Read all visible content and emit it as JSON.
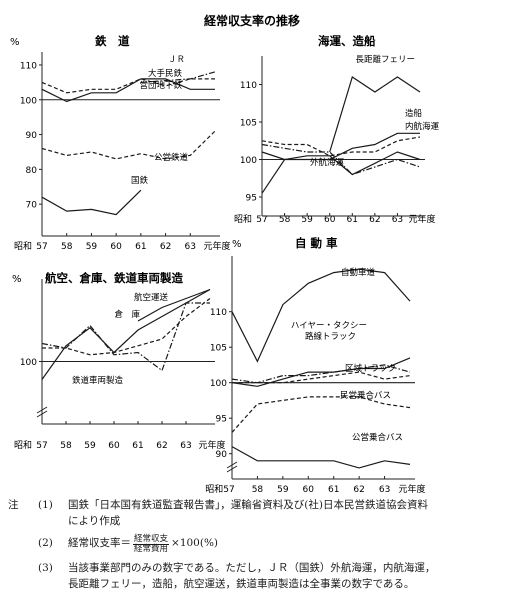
{
  "title": "経常収支率の推移",
  "x_axis": {
    "era_label": "昭和",
    "ticks": [
      "57",
      "58",
      "59",
      "60",
      "61",
      "62",
      "63"
    ],
    "end_label": "元年度",
    "auto_first_tick": "昭和57"
  },
  "chart_data": [
    {
      "id": "rail",
      "type": "line",
      "title": "鉄　道",
      "ylabel": "%",
      "yticks": [
        70,
        80,
        90,
        100,
        110
      ],
      "ylim": [
        62,
        112
      ],
      "axis_break": false,
      "reference_line": 100,
      "x": [
        "57",
        "58",
        "59",
        "60",
        "61",
        "62",
        "63",
        "元"
      ],
      "series": [
        {
          "name": "ＪＲ",
          "style": "dot-dash",
          "values": [
            null,
            null,
            null,
            null,
            105,
            105.5,
            106,
            108
          ]
        },
        {
          "name": "大手民鉄",
          "style": "dashed",
          "values": [
            105,
            102,
            103,
            103,
            106,
            104,
            106,
            106
          ]
        },
        {
          "name": "営団地下鉄",
          "style": "solid",
          "values": [
            103,
            99.5,
            102,
            102,
            106,
            106,
            103,
            103
          ]
        },
        {
          "name": "公営鉄道",
          "style": "dashed",
          "values": [
            86,
            84,
            85,
            83,
            84.5,
            83,
            84,
            91
          ]
        },
        {
          "name": "国鉄",
          "style": "solid",
          "values": [
            72,
            68,
            68.5,
            67,
            74,
            null,
            null,
            null
          ]
        }
      ]
    },
    {
      "id": "shipping",
      "type": "line",
      "title": "海運、造船",
      "ylabel": "",
      "yticks": [
        95,
        100,
        105,
        110
      ],
      "ylim": [
        93,
        113
      ],
      "axis_break": false,
      "reference_line": 100,
      "x": [
        "57",
        "58",
        "59",
        "60",
        "61",
        "62",
        "63",
        "元"
      ],
      "series": [
        {
          "name": "長距離フェリー",
          "style": "solid",
          "values": [
            null,
            null,
            null,
            101,
            111,
            109,
            111,
            109
          ]
        },
        {
          "name": "造船",
          "style": "solid",
          "values": [
            101,
            100,
            100,
            100,
            101.5,
            102,
            103.5,
            103.5
          ]
        },
        {
          "name": "内航海運",
          "style": "dashed",
          "values": [
            102.5,
            102,
            102,
            100.5,
            101,
            101,
            102.5,
            103
          ]
        },
        {
          "name": "外航海運",
          "style": "solid",
          "values": [
            95.5,
            100,
            100.5,
            100.5,
            98,
            99.5,
            101,
            100
          ]
        },
        {
          "name": "",
          "style": "dot-dash",
          "values": [
            102,
            101.5,
            101,
            101,
            98,
            99,
            100,
            99
          ]
        }
      ]
    },
    {
      "id": "aviation",
      "type": "line",
      "title": "航空、倉庫、鉄道車両製造",
      "ylabel": "%",
      "yticks": [
        100
      ],
      "ylim": [
        87,
        117
      ],
      "axis_break": true,
      "reference_line": 100,
      "x": [
        "57",
        "58",
        "59",
        "60",
        "61",
        "62",
        "63",
        "元"
      ],
      "series": [
        {
          "name": "航空運送",
          "style": "solid",
          "values": [
            null,
            null,
            null,
            null,
            109,
            112,
            114,
            116
          ]
        },
        {
          "name": "倉　庫",
          "style": "solid",
          "values": [
            96,
            103.5,
            107.5,
            102,
            107,
            110,
            113,
            116
          ]
        },
        {
          "name": "",
          "style": "dashed",
          "values": [
            103,
            103,
            101.5,
            102,
            103.5,
            105,
            110,
            114
          ]
        },
        {
          "name": "鉄道車両製造",
          "style": "dot-dash",
          "values": [
            104,
            103,
            108,
            101.5,
            102,
            98,
            113,
            113
          ]
        }
      ]
    },
    {
      "id": "auto",
      "type": "line",
      "title": "自 動 車",
      "ylabel": "%",
      "yticks": [
        90,
        95,
        100,
        105,
        110
      ],
      "ylim": [
        87,
        117
      ],
      "axis_break": true,
      "reference_line": 100,
      "x": [
        "57",
        "58",
        "59",
        "60",
        "61",
        "62",
        "63",
        "元"
      ],
      "series": [
        {
          "name": "自動車道",
          "style": "solid",
          "values": [
            110,
            103,
            111,
            114,
            115.5,
            116,
            115.5,
            111.5
          ]
        },
        {
          "name": "ハイヤー・タクシー",
          "style": "dot-dash",
          "values": [
            100.5,
            100,
            101,
            101,
            101.5,
            102,
            102.5,
            101.5
          ]
        },
        {
          "name": "路線トラック",
          "style": "solid",
          "values": [
            100,
            99.5,
            100.5,
            101.5,
            101.5,
            102,
            102,
            103.5
          ]
        },
        {
          "name": "区域トラック",
          "style": "dashed",
          "values": [
            100,
            100,
            100,
            100.5,
            101,
            101.5,
            100.5,
            101
          ]
        },
        {
          "name": "民営乗合バス",
          "style": "dashed",
          "values": [
            93,
            97,
            97.5,
            98,
            98,
            98,
            97,
            96.5
          ]
        },
        {
          "name": "公営乗合バス",
          "style": "solid",
          "values": [
            91,
            89,
            89,
            89,
            89,
            88,
            89,
            88.5
          ]
        }
      ]
    }
  ],
  "notes": {
    "label": "注",
    "n1": "(1)",
    "n1_text": "国鉄「日本国有鉄道監査報告書」，運輸省資料及び(社)日本民営鉄道協会資料",
    "n1_text2": "により作成",
    "n2": "(2)",
    "n2_prefix": "経常収支率＝",
    "n2_num": "経常収支",
    "n2_den": "経常費用",
    "n2_suffix": "×100(%)",
    "n3": "(3)",
    "n3_text": "当該事業部門のみの数字である。ただし，ＪＲ（国鉄）外航海運，内航海運，",
    "n3_text2": "長距離フェリー，造船，航空運送，鉄道車両製造は全事業の数字である。"
  }
}
